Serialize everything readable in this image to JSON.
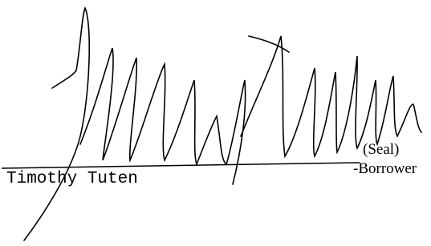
{
  "signature": {
    "name": "Timothy Tuten",
    "seal": "(Seal)",
    "role": "-Borrower"
  }
}
